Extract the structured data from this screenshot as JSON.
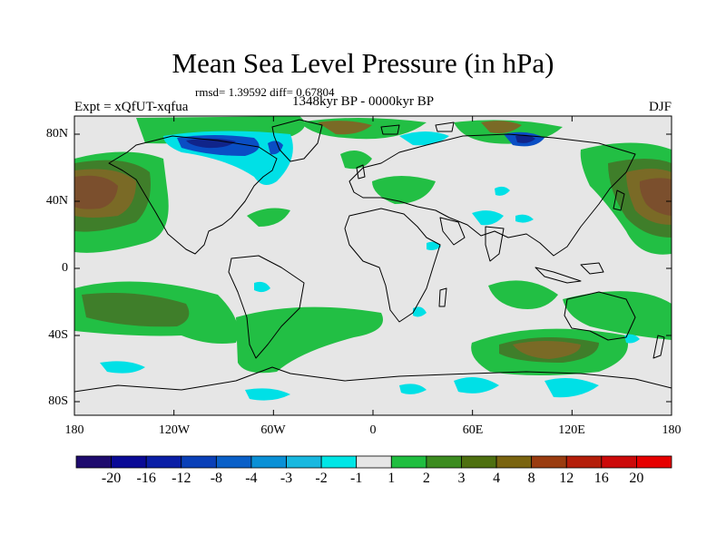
{
  "map": {
    "title": "Mean Sea Level Pressure (in hPa)",
    "stats": "rmsd= 1.39592 diff= 0.67804",
    "experiment": "Expt = xQfUT-xqfua",
    "period": "1348kyr BP - 0000kyr BP",
    "season": "DJF",
    "y_ticks": [
      "80N",
      "40N",
      "0",
      "40S",
      "80S"
    ],
    "x_ticks": [
      "180",
      "120W",
      "60W",
      "0",
      "60E",
      "120E",
      "180"
    ]
  },
  "colorbar": {
    "labels": [
      "-20",
      "-16",
      "-12",
      "-8",
      "-4",
      "-3",
      "-2",
      "-1",
      "1",
      "2",
      "3",
      "4",
      "8",
      "12",
      "16",
      "20"
    ],
    "colors": [
      "#1e0b6e",
      "#0a0a96",
      "#0a1ea6",
      "#0a40b8",
      "#0a60c8",
      "#0a90d6",
      "#18b8e0",
      "#00e6e6",
      "#e6e6e6",
      "#20be40",
      "#3c8c20",
      "#4e7010",
      "#7a6410",
      "#9a3c10",
      "#b41e0a",
      "#cc0a0a",
      "#e60000"
    ]
  },
  "palette": {
    "background": "#e6e6e6",
    "green": "#22bf44",
    "dark_green": "#3f7e2a",
    "olive": "#5f6c23",
    "brown": "#7a6a26",
    "brown_dark": "#7b4f2d",
    "cyan": "#00e0e6",
    "sky": "#18b4dc",
    "blue": "#0a4ec4",
    "navy": "#10248a"
  }
}
